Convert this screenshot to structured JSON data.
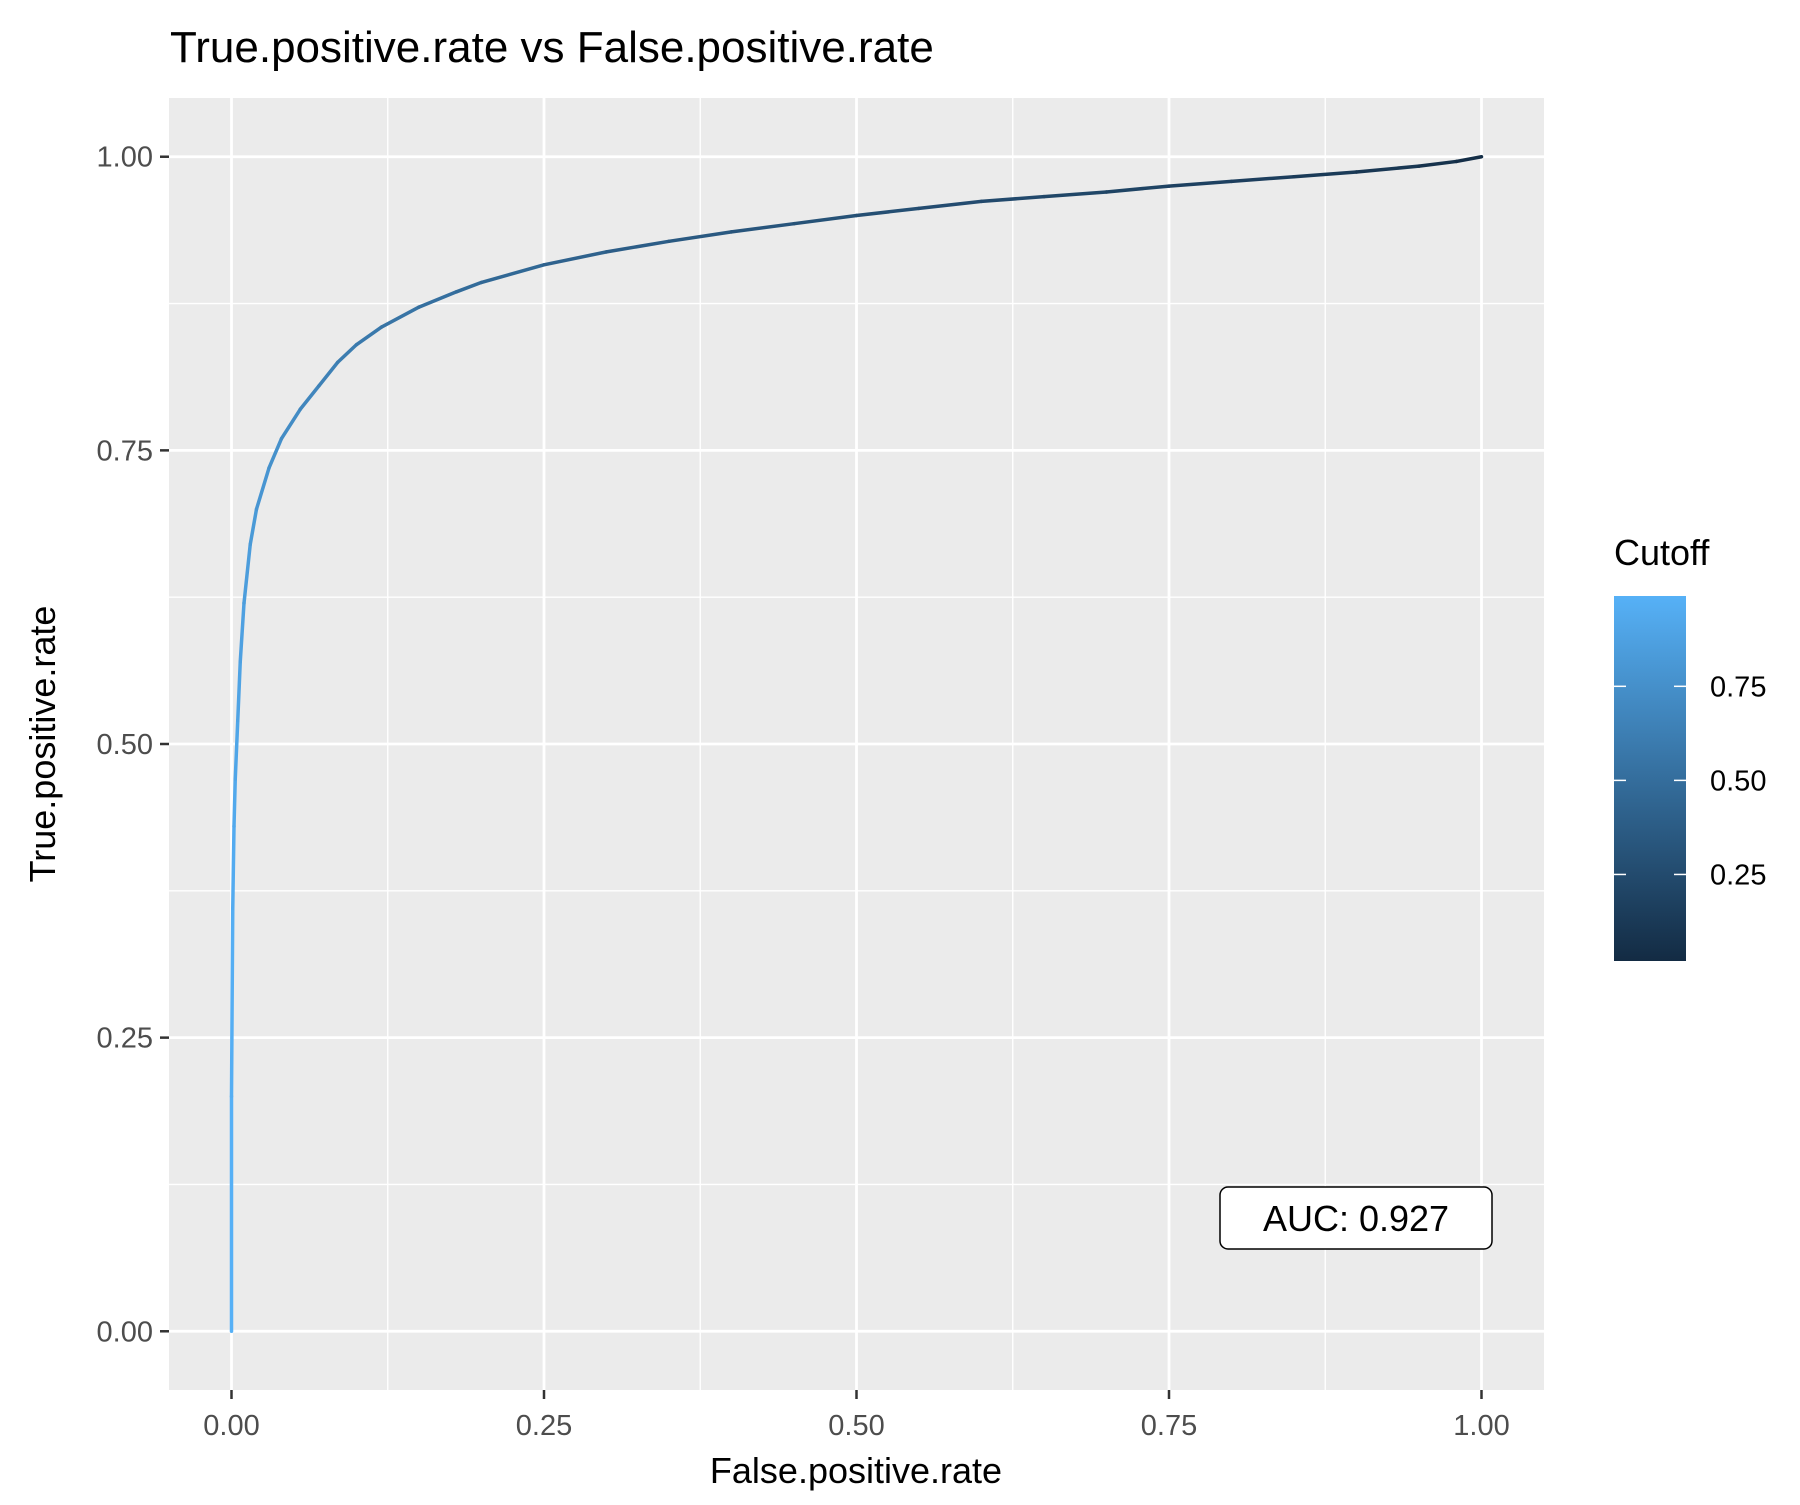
{
  "chart_data": {
    "type": "line",
    "title": "True.positive.rate vs False.positive.rate",
    "xlabel": "False.positive.rate",
    "ylabel": "True.positive.rate",
    "xlim": [
      -0.05,
      1.05
    ],
    "ylim": [
      -0.05,
      1.05
    ],
    "x_ticks": [
      0,
      0.25,
      0.5,
      0.75,
      1.0
    ],
    "x_tick_labels": [
      "0.00",
      "0.25",
      "0.50",
      "0.75",
      "1.00"
    ],
    "y_ticks": [
      0,
      0.25,
      0.5,
      0.75,
      1.0
    ],
    "y_tick_labels": [
      "0.00",
      "0.25",
      "0.50",
      "0.75",
      "1.00"
    ],
    "grid": true,
    "background": "#ebebeb",
    "annotation": "AUC: 0.927",
    "legend": {
      "title": "Cutoff",
      "position": "right",
      "ticks": [
        0.25,
        0.5,
        0.75
      ],
      "tick_labels": [
        "0.25",
        "0.50",
        "0.75"
      ],
      "range": [
        0.02,
        0.99
      ],
      "color_low": "#132b43",
      "color_high": "#56b1f7"
    },
    "series": [
      {
        "x": [
          0.0,
          0.0,
          0.001,
          0.002,
          0.003,
          0.005,
          0.007,
          0.01,
          0.015,
          0.02,
          0.03,
          0.04,
          0.055,
          0.07,
          0.085,
          0.1,
          0.12,
          0.15,
          0.18,
          0.2,
          0.25,
          0.3,
          0.35,
          0.4,
          0.45,
          0.5,
          0.55,
          0.6,
          0.65,
          0.7,
          0.75,
          0.8,
          0.85,
          0.9,
          0.95,
          0.98,
          1.0
        ],
        "y": [
          0.0,
          0.2,
          0.36,
          0.43,
          0.47,
          0.52,
          0.57,
          0.62,
          0.67,
          0.7,
          0.735,
          0.76,
          0.785,
          0.805,
          0.825,
          0.84,
          0.855,
          0.872,
          0.885,
          0.893,
          0.908,
          0.919,
          0.928,
          0.936,
          0.943,
          0.95,
          0.956,
          0.962,
          0.966,
          0.97,
          0.975,
          0.979,
          0.983,
          0.987,
          0.992,
          0.996,
          1.0
        ],
        "cutoff": [
          0.99,
          0.98,
          0.96,
          0.94,
          0.92,
          0.9,
          0.88,
          0.86,
          0.83,
          0.81,
          0.77,
          0.74,
          0.7,
          0.66,
          0.62,
          0.6,
          0.57,
          0.53,
          0.5,
          0.48,
          0.44,
          0.4,
          0.37,
          0.34,
          0.31,
          0.29,
          0.27,
          0.25,
          0.23,
          0.21,
          0.19,
          0.17,
          0.15,
          0.12,
          0.09,
          0.06,
          0.02
        ]
      }
    ]
  }
}
